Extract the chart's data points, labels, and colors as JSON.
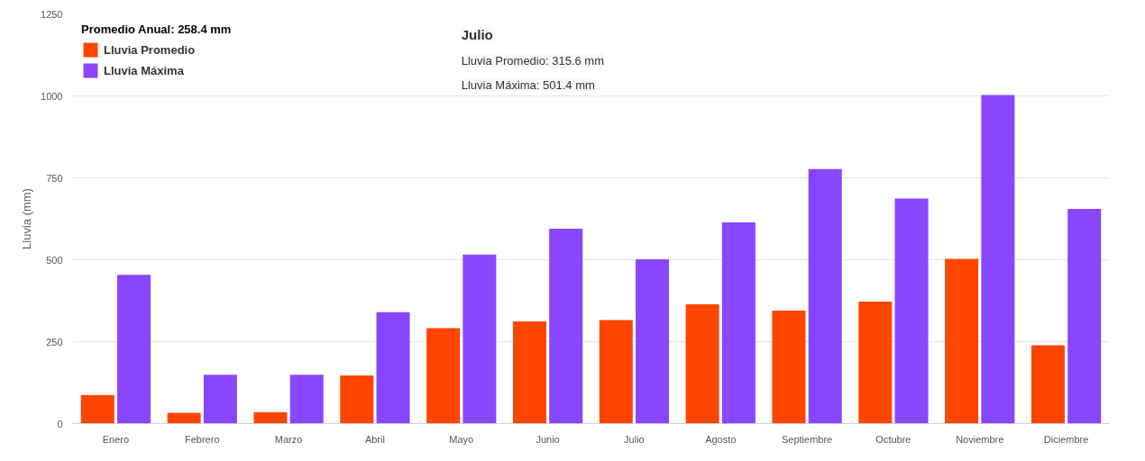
{
  "chart_data": {
    "type": "bar",
    "ylabel": "Lluvia (mm)",
    "legend_title": "Promedio Anual: 258.4 mm",
    "categories": [
      "Enero",
      "Febrero",
      "Marzo",
      "Abril",
      "Mayo",
      "Junio",
      "Julio",
      "Agosto",
      "Septiembre",
      "Octubre",
      "Noviembre",
      "Diciembre"
    ],
    "series": [
      {
        "name": "Lluvia Promedio",
        "color": "#ff4500",
        "values": [
          87,
          33,
          35,
          147,
          291,
          312,
          315.6,
          364,
          345,
          372,
          503,
          239
        ]
      },
      {
        "name": "Lluvia Máxima",
        "color": "#8a45ff",
        "values": [
          454,
          149,
          149,
          340,
          516,
          595,
          501.4,
          614,
          777,
          687,
          1003,
          655
        ]
      }
    ],
    "ylim": [
      0,
      1250
    ],
    "yticks": [
      0,
      250,
      500,
      750,
      1000,
      1250
    ],
    "grid": "y",
    "legend": "top left",
    "annotations": [
      "Julio",
      "Lluvia Promedio: 315.6 mm",
      "Lluvia Máxima: 501.4 mm"
    ]
  }
}
